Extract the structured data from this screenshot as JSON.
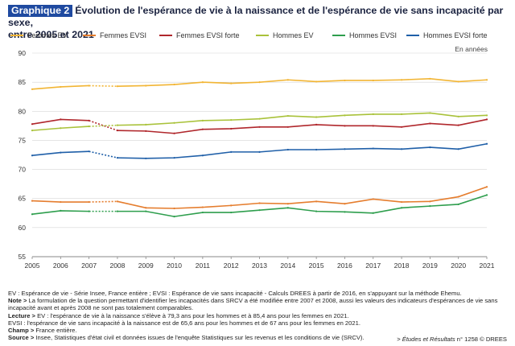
{
  "figure": {
    "badge": "Graphique 2",
    "title_line1": "Évolution de l'espérance de vie à la naissance et de l'espérance de vie sans incapacité par sexe,",
    "title_line2": "entre 2005 et 2021",
    "unit": "En années"
  },
  "chart_data": {
    "type": "line",
    "x": [
      "2005",
      "2006",
      "2007",
      "2008",
      "2009",
      "2010",
      "2011",
      "2012",
      "2013",
      "2014",
      "2015",
      "2016",
      "2017",
      "2018",
      "2019",
      "2020",
      "2021"
    ],
    "ylim": [
      55,
      90
    ],
    "yticks": [
      55,
      60,
      65,
      70,
      75,
      80,
      85,
      90
    ],
    "grid": true,
    "legend_position": "top",
    "break_between": [
      "2007",
      "2008"
    ],
    "series": [
      {
        "name": "Femmes EV",
        "color": "#f2b534",
        "values": [
          83.8,
          84.2,
          84.4,
          84.3,
          84.4,
          84.6,
          85.0,
          84.8,
          85.0,
          85.4,
          85.1,
          85.3,
          85.3,
          85.4,
          85.6,
          85.1,
          85.4
        ]
      },
      {
        "name": "Femmes EVSI",
        "color": "#e57d2e",
        "values": [
          64.6,
          64.4,
          64.4,
          64.5,
          63.4,
          63.3,
          63.5,
          63.8,
          64.2,
          64.1,
          64.5,
          64.1,
          64.9,
          64.4,
          64.5,
          65.3,
          67.0
        ]
      },
      {
        "name": "Femmes EVSI forte",
        "color": "#b0272c",
        "values": [
          77.8,
          78.6,
          78.4,
          76.7,
          76.6,
          76.2,
          76.9,
          77.0,
          77.3,
          77.3,
          77.7,
          77.5,
          77.5,
          77.3,
          77.9,
          77.6,
          78.6
        ]
      },
      {
        "name": "Hommes EV",
        "color": "#a9c23a",
        "values": [
          76.7,
          77.1,
          77.4,
          77.6,
          77.7,
          78.0,
          78.4,
          78.5,
          78.7,
          79.2,
          79.0,
          79.3,
          79.5,
          79.5,
          79.7,
          79.1,
          79.3
        ]
      },
      {
        "name": "Hommes EVSI",
        "color": "#2e9e4d",
        "values": [
          62.3,
          62.9,
          62.8,
          62.8,
          62.8,
          61.9,
          62.6,
          62.6,
          63.0,
          63.4,
          62.8,
          62.7,
          62.5,
          63.4,
          63.7,
          64.0,
          65.6
        ]
      },
      {
        "name": "Hommes EVSI forte",
        "color": "#1f5fa8",
        "values": [
          72.4,
          72.9,
          73.1,
          72.0,
          71.9,
          72.0,
          72.4,
          73.0,
          73.0,
          73.4,
          73.4,
          73.5,
          73.6,
          73.5,
          73.8,
          73.5,
          74.4
        ]
      }
    ]
  },
  "notes": {
    "ev_label": "EV : Espérance de vie - Série Insee, France entière ; EVSI : Espérance de vie sans incapacité - Calculs DREES à partir de 2016, en s'appuyant sur la méthode Ehemu.",
    "note_label": "Note >",
    "note_text": " La formulation de la question permettant d'identifier les incapacités dans SRCV a été modifiée entre 2007 et 2008, aussi les valeurs des indicateurs d'espérances de vie sans incapacité avant et après 2008 ne sont pas totalement comparables.",
    "lecture_label": "Lecture >",
    "lecture_text": " EV : l'espérance de vie à la naissance s'élève à 79,3 ans pour les hommes et à 85,4 ans pour les femmes en 2021.",
    "evsi_text": "EVSI : l'espérance de vie sans incapacité à la naissance est de 65,6 ans pour les hommes et de 67 ans pour les femmes en 2021.",
    "champ_label": "Champ >",
    "champ_text": " France entière.",
    "source_label": "Source >",
    "source_text": " Insee, Statistiques d'état civil et données issues de l'enquête Statistiques sur les revenus et les conditions de vie (SRCV)."
  },
  "footer": {
    "prefix": "> ",
    "publication": "Études et Résultats",
    "suffix": " n° 1258 © DREES"
  }
}
